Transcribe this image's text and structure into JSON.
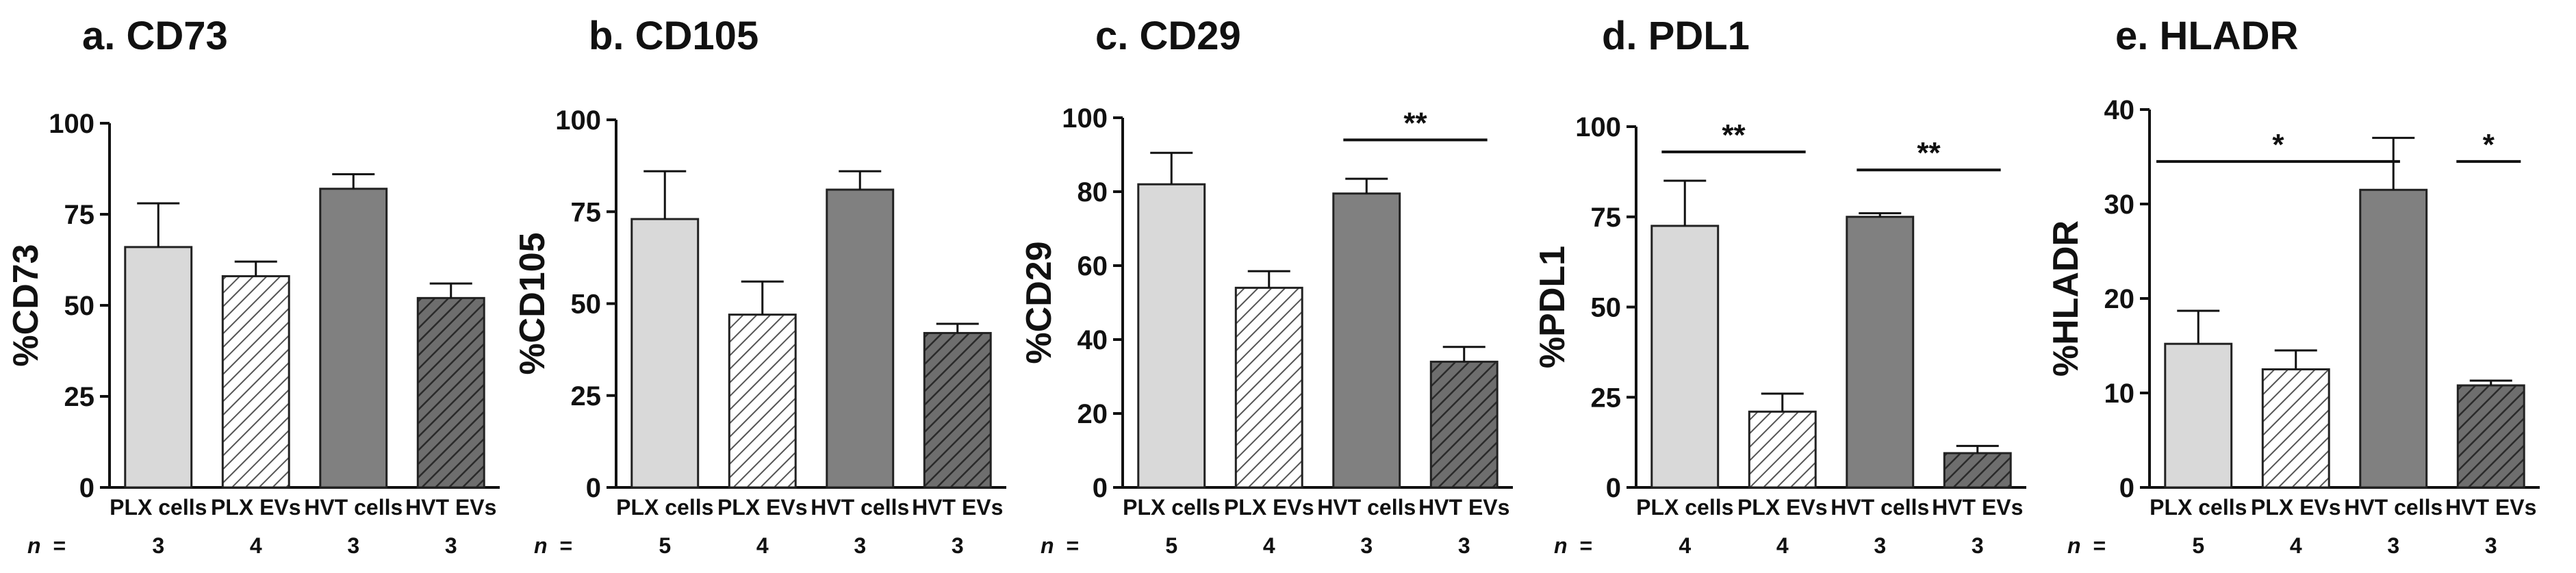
{
  "figure": {
    "n_label": "n",
    "n_equals": "="
  },
  "chart_data": [
    {
      "type": "bar",
      "title": "a. CD73",
      "ylabel": "%CD73",
      "ylim": [
        0,
        100
      ],
      "yticks": [
        0,
        25,
        50,
        75,
        100
      ],
      "categories": [
        "PLX cells",
        "PLX EVs",
        "HVT cells",
        "HVT EVs"
      ],
      "values": [
        66,
        58,
        82,
        52
      ],
      "errors": [
        12,
        4,
        4,
        4
      ],
      "fills": [
        "light-gray",
        "light-gray-hatched",
        "dark-gray",
        "dark-gray-hatched"
      ],
      "n": [
        "3",
        "4",
        "3",
        "3"
      ],
      "significance": []
    },
    {
      "type": "bar",
      "title": "b. CD105",
      "ylabel": "%CD105",
      "ylim": [
        0,
        100
      ],
      "yticks": [
        0,
        25,
        50,
        75,
        100
      ],
      "categories": [
        "PLX cells",
        "PLX EVs",
        "HVT cells",
        "HVT EVs"
      ],
      "values": [
        73,
        47,
        81,
        42
      ],
      "errors": [
        13,
        9,
        5,
        2.5
      ],
      "fills": [
        "light-gray",
        "light-gray-hatched",
        "dark-gray",
        "dark-gray-hatched"
      ],
      "n": [
        "5",
        "4",
        "3",
        "3"
      ],
      "significance": []
    },
    {
      "type": "bar",
      "title": "c. CD29",
      "ylabel": "%CD29",
      "ylim": [
        0,
        100
      ],
      "yticks": [
        0,
        20,
        40,
        60,
        80,
        100
      ],
      "categories": [
        "PLX cells",
        "PLX EVs",
        "HVT cells",
        "HVT EVs"
      ],
      "values": [
        82,
        54,
        79.5,
        34
      ],
      "errors": [
        8.5,
        4.5,
        4,
        4
      ],
      "fills": [
        "light-gray",
        "light-gray-hatched",
        "dark-gray",
        "dark-gray-hatched"
      ],
      "n": [
        "5",
        "4",
        "3",
        "3"
      ],
      "significance": [
        {
          "from": 2,
          "to": 3,
          "y": 94,
          "label": "**"
        }
      ]
    },
    {
      "type": "bar",
      "title": "d. PDL1",
      "ylabel": "%PDL1",
      "ylim": [
        0,
        100
      ],
      "yticks": [
        0,
        25,
        50,
        75,
        100
      ],
      "categories": [
        "PLX cells",
        "PLX EVs",
        "HVT cells",
        "HVT EVs"
      ],
      "values": [
        72.5,
        21,
        75,
        9.5
      ],
      "errors": [
        12.5,
        5,
        1,
        2
      ],
      "fills": [
        "light-gray",
        "light-gray-hatched",
        "dark-gray",
        "dark-gray-hatched"
      ],
      "n": [
        "4",
        "4",
        "3",
        "3"
      ],
      "significance": [
        {
          "from": 0,
          "to": 1,
          "y": 93,
          "label": "**"
        },
        {
          "from": 2,
          "to": 3,
          "y": 88,
          "label": "**"
        }
      ]
    },
    {
      "type": "bar",
      "title": "e. HLADR",
      "ylabel": "%HLADR",
      "ylim": [
        0,
        40
      ],
      "yticks": [
        0,
        10,
        20,
        30,
        40
      ],
      "categories": [
        "PLX cells",
        "PLX EVs",
        "HVT cells",
        "HVT EVs"
      ],
      "values": [
        15.2,
        12.5,
        31.5,
        10.8
      ],
      "errors": [
        3.5,
        2,
        5.5,
        0.5
      ],
      "fills": [
        "light-gray",
        "light-gray-hatched",
        "dark-gray",
        "dark-gray-hatched"
      ],
      "n": [
        "5",
        "4",
        "3",
        "3"
      ],
      "significance": [
        {
          "from": 0,
          "to": 2,
          "y": 34.5,
          "label": "*"
        },
        {
          "from": 2.6,
          "to": 3,
          "y": 34.5,
          "label": "*",
          "span": "pair"
        }
      ]
    }
  ]
}
